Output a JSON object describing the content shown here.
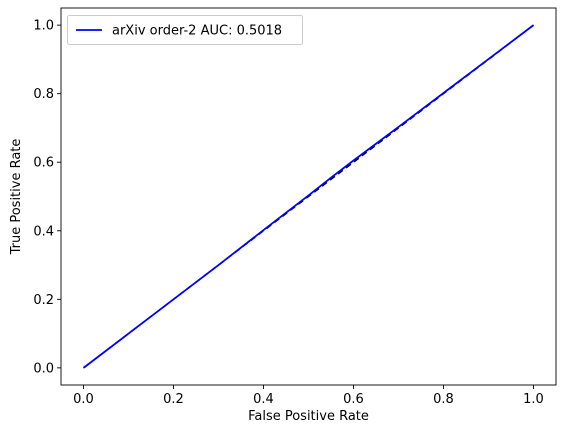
{
  "chart_data": {
    "type": "line",
    "title": "",
    "xlabel": "False Positive Rate",
    "ylabel": "True Positive Rate",
    "xlim": [
      -0.05,
      1.05
    ],
    "ylim": [
      -0.05,
      1.05
    ],
    "xticks": [
      0.0,
      0.2,
      0.4,
      0.6,
      0.8,
      1.0
    ],
    "yticks": [
      0.0,
      0.2,
      0.4,
      0.6,
      0.8,
      1.0
    ],
    "xtick_labels": [
      "0.0",
      "0.2",
      "0.4",
      "0.6",
      "0.8",
      "1.0"
    ],
    "ytick_labels": [
      "0.0",
      "0.2",
      "0.4",
      "0.6",
      "0.8",
      "1.0"
    ],
    "grid": false,
    "legend_position": "top-left",
    "series": [
      {
        "name": "arXiv order-2 AUC: 0.5018",
        "color": "#0000ff",
        "style": "solid",
        "x": [
          0.0,
          0.1,
          0.2,
          0.3,
          0.4,
          0.5,
          0.55,
          0.6,
          0.65,
          0.7,
          0.8,
          0.9,
          1.0
        ],
        "y": [
          0.0,
          0.1,
          0.2,
          0.3,
          0.402,
          0.503,
          0.555,
          0.605,
          0.654,
          0.703,
          0.802,
          0.901,
          1.0
        ]
      },
      {
        "name": "",
        "color": "#000000",
        "style": "dashed",
        "x": [
          0.0,
          1.0
        ],
        "y": [
          0.0,
          1.0
        ]
      }
    ]
  }
}
